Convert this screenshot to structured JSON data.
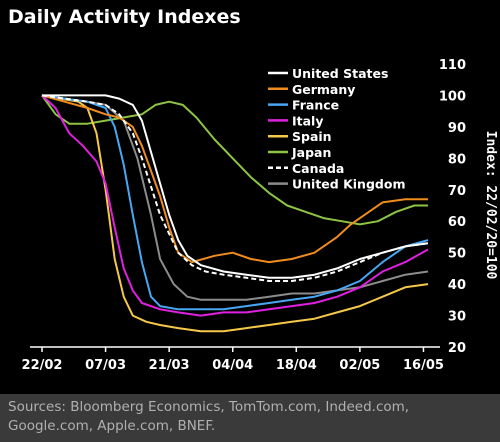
{
  "title": "Daily Activity Indexes",
  "source": "Sources: Bloomberg Economics, TomTom.com, Indeed.com, Google.com, Apple.com, BNEF.",
  "chart_data": {
    "type": "line",
    "title": "Daily Activity Indexes",
    "xlabel": "",
    "ylabel": "Index: 22/02/20=100",
    "x_tick_labels": [
      "22/02",
      "07/03",
      "21/03",
      "04/04",
      "18/04",
      "02/05",
      "16/05"
    ],
    "x_tick_days": [
      0,
      14,
      28,
      42,
      56,
      70,
      84
    ],
    "x_range_days": [
      0,
      85
    ],
    "ylim": [
      20,
      110
    ],
    "y_ticks": [
      20,
      30,
      40,
      50,
      60,
      70,
      80,
      90,
      100,
      110
    ],
    "y_axis_side": "right",
    "grid": false,
    "legend_position": "top-right",
    "x_unit_note": "x values are days after 22/02",
    "series": [
      {
        "name": "United States",
        "color": "#ffffff",
        "dash": false,
        "points": [
          [
            0,
            100
          ],
          [
            5,
            100
          ],
          [
            10,
            100
          ],
          [
            14,
            100
          ],
          [
            17,
            99
          ],
          [
            20,
            97
          ],
          [
            22,
            92
          ],
          [
            24,
            82
          ],
          [
            26,
            72
          ],
          [
            28,
            62
          ],
          [
            30,
            54
          ],
          [
            32,
            49
          ],
          [
            35,
            46
          ],
          [
            40,
            44
          ],
          [
            45,
            43
          ],
          [
            50,
            42
          ],
          [
            55,
            42
          ],
          [
            60,
            43
          ],
          [
            65,
            45
          ],
          [
            70,
            48
          ],
          [
            75,
            50
          ],
          [
            80,
            52
          ],
          [
            85,
            53
          ]
        ]
      },
      {
        "name": "Germany",
        "color": "#f08c1e",
        "dash": false,
        "points": [
          [
            0,
            100
          ],
          [
            5,
            98
          ],
          [
            10,
            96
          ],
          [
            14,
            94
          ],
          [
            17,
            93
          ],
          [
            20,
            90
          ],
          [
            22,
            84
          ],
          [
            24,
            76
          ],
          [
            26,
            68
          ],
          [
            28,
            58
          ],
          [
            30,
            50
          ],
          [
            33,
            47
          ],
          [
            38,
            49
          ],
          [
            42,
            50
          ],
          [
            46,
            48
          ],
          [
            50,
            47
          ],
          [
            55,
            48
          ],
          [
            60,
            50
          ],
          [
            65,
            55
          ],
          [
            68,
            59
          ],
          [
            72,
            63
          ],
          [
            75,
            66
          ],
          [
            80,
            67
          ],
          [
            85,
            67
          ]
        ]
      },
      {
        "name": "France",
        "color": "#49a6f2",
        "dash": false,
        "points": [
          [
            0,
            100
          ],
          [
            5,
            99
          ],
          [
            10,
            98
          ],
          [
            14,
            96
          ],
          [
            16,
            90
          ],
          [
            18,
            78
          ],
          [
            20,
            62
          ],
          [
            22,
            47
          ],
          [
            24,
            36
          ],
          [
            26,
            33
          ],
          [
            30,
            32
          ],
          [
            35,
            32
          ],
          [
            40,
            32
          ],
          [
            45,
            33
          ],
          [
            50,
            34
          ],
          [
            55,
            35
          ],
          [
            60,
            36
          ],
          [
            65,
            38
          ],
          [
            70,
            41
          ],
          [
            75,
            47
          ],
          [
            80,
            52
          ],
          [
            85,
            54
          ]
        ]
      },
      {
        "name": "Italy",
        "color": "#e020e0",
        "dash": false,
        "points": [
          [
            0,
            100
          ],
          [
            3,
            96
          ],
          [
            6,
            88
          ],
          [
            9,
            84
          ],
          [
            12,
            79
          ],
          [
            14,
            72
          ],
          [
            16,
            58
          ],
          [
            18,
            45
          ],
          [
            20,
            38
          ],
          [
            22,
            34
          ],
          [
            26,
            32
          ],
          [
            30,
            31
          ],
          [
            35,
            30
          ],
          [
            40,
            31
          ],
          [
            45,
            31
          ],
          [
            50,
            32
          ],
          [
            55,
            33
          ],
          [
            60,
            34
          ],
          [
            65,
            36
          ],
          [
            70,
            39
          ],
          [
            75,
            44
          ],
          [
            80,
            47
          ],
          [
            85,
            51
          ]
        ]
      },
      {
        "name": "Spain",
        "color": "#f5c84a",
        "dash": false,
        "points": [
          [
            0,
            100
          ],
          [
            4,
            99
          ],
          [
            8,
            98
          ],
          [
            10,
            96
          ],
          [
            12,
            88
          ],
          [
            14,
            70
          ],
          [
            16,
            48
          ],
          [
            18,
            36
          ],
          [
            20,
            30
          ],
          [
            23,
            28
          ],
          [
            26,
            27
          ],
          [
            30,
            26
          ],
          [
            35,
            25
          ],
          [
            40,
            25
          ],
          [
            45,
            26
          ],
          [
            50,
            27
          ],
          [
            55,
            28
          ],
          [
            60,
            29
          ],
          [
            65,
            31
          ],
          [
            70,
            33
          ],
          [
            75,
            36
          ],
          [
            80,
            39
          ],
          [
            85,
            40
          ]
        ]
      },
      {
        "name": "Japan",
        "color": "#8ec444",
        "dash": false,
        "points": [
          [
            0,
            100
          ],
          [
            3,
            94
          ],
          [
            6,
            91
          ],
          [
            10,
            91
          ],
          [
            14,
            92
          ],
          [
            18,
            93
          ],
          [
            22,
            94
          ],
          [
            25,
            97
          ],
          [
            28,
            98
          ],
          [
            31,
            97
          ],
          [
            34,
            93
          ],
          [
            38,
            86
          ],
          [
            42,
            80
          ],
          [
            46,
            74
          ],
          [
            50,
            69
          ],
          [
            54,
            65
          ],
          [
            58,
            63
          ],
          [
            62,
            61
          ],
          [
            66,
            60
          ],
          [
            70,
            59
          ],
          [
            74,
            60
          ],
          [
            78,
            63
          ],
          [
            82,
            65
          ],
          [
            85,
            65
          ]
        ]
      },
      {
        "name": "Canada",
        "color": "#ffffff",
        "dash": true,
        "points": [
          [
            0,
            100
          ],
          [
            5,
            99
          ],
          [
            10,
            98
          ],
          [
            14,
            97
          ],
          [
            17,
            94
          ],
          [
            20,
            88
          ],
          [
            22,
            80
          ],
          [
            24,
            71
          ],
          [
            26,
            62
          ],
          [
            28,
            56
          ],
          [
            30,
            50
          ],
          [
            33,
            46
          ],
          [
            36,
            44
          ],
          [
            40,
            43
          ],
          [
            45,
            42
          ],
          [
            50,
            41
          ],
          [
            55,
            41
          ],
          [
            60,
            42
          ],
          [
            65,
            44
          ],
          [
            70,
            47
          ],
          [
            75,
            50
          ],
          [
            80,
            52
          ],
          [
            85,
            53
          ]
        ]
      },
      {
        "name": "United Kingdom",
        "color": "#8c8c8c",
        "dash": false,
        "points": [
          [
            0,
            100
          ],
          [
            5,
            99
          ],
          [
            10,
            98
          ],
          [
            14,
            97
          ],
          [
            18,
            92
          ],
          [
            21,
            80
          ],
          [
            24,
            62
          ],
          [
            26,
            48
          ],
          [
            29,
            40
          ],
          [
            32,
            36
          ],
          [
            35,
            35
          ],
          [
            40,
            35
          ],
          [
            45,
            35
          ],
          [
            50,
            36
          ],
          [
            55,
            37
          ],
          [
            60,
            37
          ],
          [
            65,
            38
          ],
          [
            70,
            39
          ],
          [
            75,
            41
          ],
          [
            80,
            43
          ],
          [
            85,
            44
          ]
        ]
      }
    ]
  }
}
